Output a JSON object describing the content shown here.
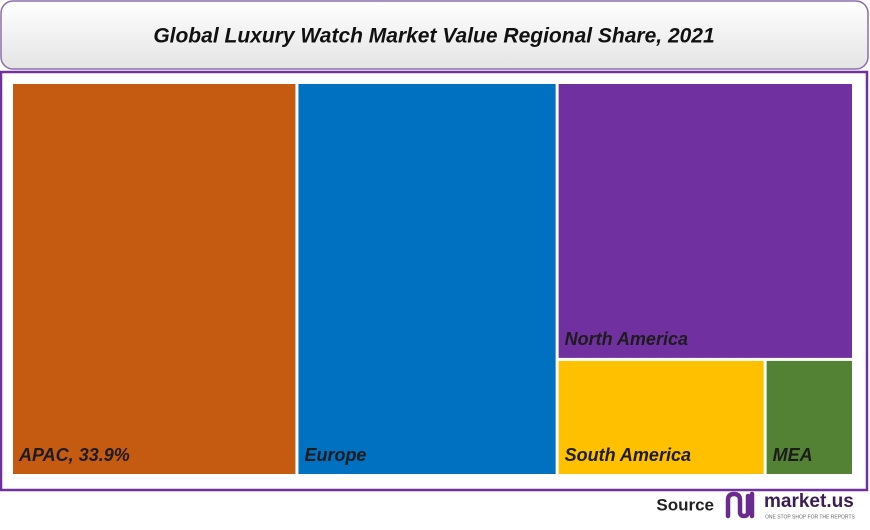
{
  "chart_data": {
    "type": "treemap",
    "title": "Global Luxury Watch Market Value Regional Share, 2021",
    "categories": [
      "APAC",
      "Europe",
      "North America",
      "South America",
      "MEA"
    ],
    "values": [
      33.9,
      30.9,
      24.8,
      7.3,
      3.1
    ],
    "value_labels": [
      "33.9%",
      null,
      null,
      null,
      null
    ],
    "colors": [
      "#c55a11",
      "#0070c0",
      "#7030a0",
      "#ffc000",
      "#548235"
    ]
  },
  "footer": {
    "source": "Source",
    "brand": "market.us",
    "tagline": "ONE STOP SHOP FOR THE REPORTS"
  }
}
